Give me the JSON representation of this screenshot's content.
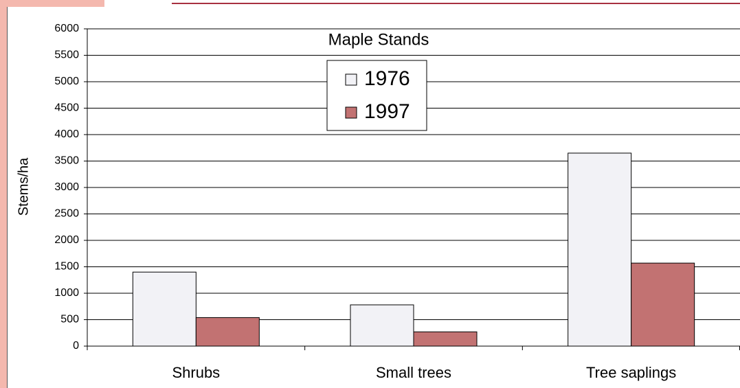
{
  "chart_data": {
    "type": "bar",
    "title": "Maple Stands",
    "y_label": "Stems/ha",
    "categories": [
      "Shrubs",
      "Small trees",
      "Tree saplings"
    ],
    "series": [
      {
        "name": "1976",
        "color": "#f2f2f6",
        "values": [
          1400,
          780,
          3650
        ]
      },
      {
        "name": "1997",
        "color": "#c27272",
        "values": [
          540,
          270,
          1570
        ]
      }
    ],
    "ylim": [
      0,
      6000
    ],
    "yticks": [
      0,
      500,
      1000,
      1500,
      2000,
      2500,
      3000,
      3500,
      4000,
      4500,
      5000,
      5500,
      6000
    ],
    "grid": true
  }
}
